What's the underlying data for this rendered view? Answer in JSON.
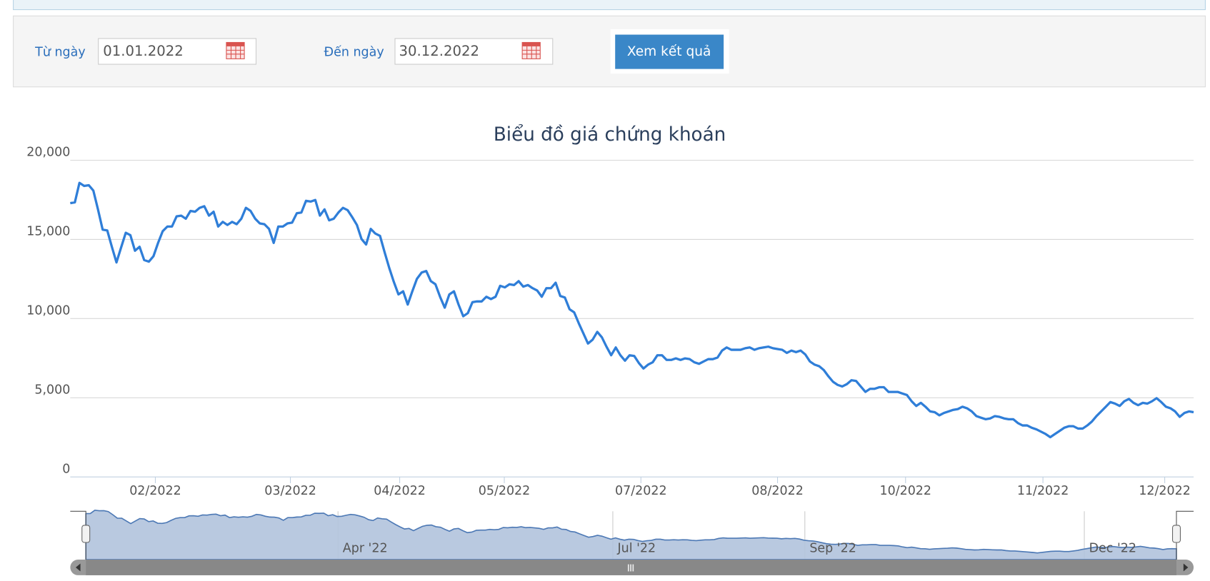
{
  "form": {
    "from_label": "Từ ngày",
    "from_value": "01.01.2022",
    "to_label": "Đến ngày",
    "to_value": "30.12.2022",
    "button": "Xem kết quả"
  },
  "chart_data": {
    "type": "line",
    "title": "Biểu đồ giá chứng khoán",
    "series": [
      {
        "color": "#2f7ed8",
        "values": [
          17290,
          17340,
          18570,
          18374,
          18423,
          18078,
          16896,
          15615,
          15566,
          14532,
          13547,
          14482,
          15418,
          15271,
          14285,
          14532,
          13694,
          13596,
          13941,
          14778,
          15517,
          15812,
          15812,
          16453,
          16502,
          16305,
          16798,
          16748,
          16995,
          17093,
          16502,
          16748,
          15812,
          16108,
          15911,
          16108,
          15960,
          16305,
          16995,
          16798,
          16305,
          16010,
          15960,
          15665,
          14778,
          15812,
          15812,
          16010,
          16059,
          16650,
          16699,
          17438,
          17389,
          17487,
          16502,
          16896,
          16207,
          16305,
          16699,
          16995,
          16847,
          16404,
          15911,
          15024,
          14679,
          15665,
          15369,
          15221,
          14187,
          13202,
          12315,
          11527,
          11724,
          10886,
          11724,
          12512,
          12906,
          13005,
          12364,
          12167,
          11379,
          10689,
          11527,
          11724,
          10886,
          10148,
          10345,
          11034,
          11084,
          11084,
          11379,
          11231,
          11379,
          12069,
          11970,
          12167,
          12118,
          12364,
          12019,
          12118,
          11921,
          11773,
          11379,
          11921,
          11921,
          12266,
          11428,
          11330,
          10591,
          10394,
          9704,
          9064,
          8423,
          8670,
          9162,
          8818,
          8226,
          7685,
          8177,
          7685,
          7340,
          7685,
          7635,
          7192,
          6847,
          7093,
          7241,
          7685,
          7685,
          7389,
          7389,
          7488,
          7389,
          7488,
          7438,
          7241,
          7143,
          7290,
          7438,
          7438,
          7537,
          7980,
          8177,
          8029,
          8029,
          8029,
          8128,
          8177,
          8029,
          8128,
          8177,
          8226,
          8128,
          8079,
          8029,
          7832,
          7980,
          7882,
          7980,
          7734,
          7290,
          7093,
          6995,
          6749,
          6355,
          6010,
          5813,
          5714,
          5862,
          6108,
          6059,
          5714,
          5369,
          5566,
          5566,
          5665,
          5665,
          5369,
          5369,
          5369,
          5271,
          5172,
          4778,
          4483,
          4680,
          4433,
          4138,
          4089,
          3892,
          4039,
          4138,
          4236,
          4286,
          4433,
          4335,
          4138,
          3842,
          3744,
          3645,
          3695,
          3842,
          3793,
          3695,
          3645,
          3645,
          3399,
          3251,
          3251,
          3103,
          3005,
          2857,
          2709,
          2512,
          2709,
          2906,
          3103,
          3202,
          3202,
          3054,
          3054,
          3251,
          3497,
          3842,
          4138,
          4433,
          4729,
          4630,
          4483,
          4778,
          4926,
          4680,
          4532,
          4680,
          4630,
          4778,
          4975,
          4729,
          4433,
          4335,
          4138,
          3793,
          4039,
          4138,
          4089
        ]
      }
    ],
    "ylim": [
      0,
      20000
    ],
    "yticks": [
      0,
      {
        "value": 5000,
        "label": "5,000"
      },
      {
        "value": 10000,
        "label": "10,000"
      },
      {
        "value": 15000,
        "label": "15,000"
      },
      {
        "value": 20000,
        "label": "20,000"
      }
    ],
    "grid": true,
    "xtick_labels": [
      "02/2022",
      "03/2022",
      "04/2022",
      "05/2022",
      "07/2022",
      "08/2022",
      "10/2022",
      "11/2022",
      "12/2022"
    ],
    "navigator_labels": [
      "Apr '22",
      "Jul '22",
      "Sep '22",
      "Dec '22"
    ]
  }
}
